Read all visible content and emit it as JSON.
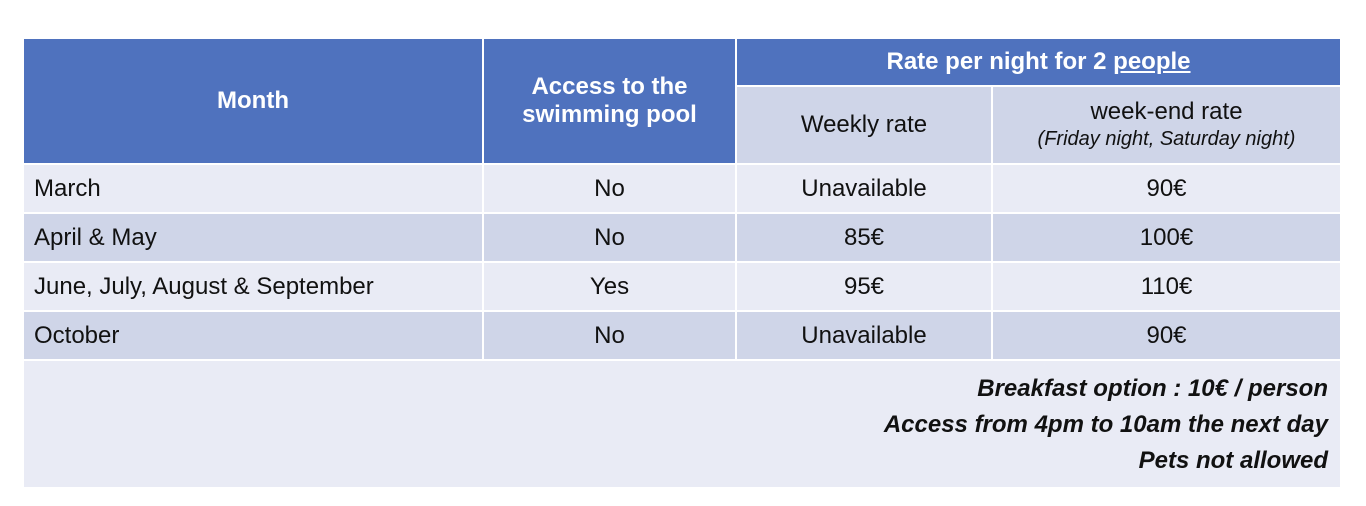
{
  "table": {
    "header": {
      "month": "Month",
      "pool": "Access to the swimming pool",
      "rate_group_prefix": "Rate per night for 2 ",
      "rate_group_underlined": "people",
      "weekly": "Weekly rate",
      "weekend": "week-end rate",
      "weekend_note": "(Friday night, Saturday night)"
    },
    "rows": [
      {
        "month": "March",
        "pool": "No",
        "weekly": "Unavailable",
        "weekend": "90€"
      },
      {
        "month": "April & May",
        "pool": "No",
        "weekly": "85€",
        "weekend": "100€"
      },
      {
        "month": "June, July, August & September",
        "pool": "Yes",
        "weekly": "95€",
        "weekend": "110€"
      },
      {
        "month": "October",
        "pool": "No",
        "weekly": "Unavailable",
        "weekend": "90€"
      }
    ],
    "notes": [
      "Breakfast option : 10€ / person",
      "Access from 4pm to 10am the next day",
      "Pets not allowed"
    ]
  },
  "colors": {
    "header_blue": "#4f72be",
    "row_light": "#e9ebf5",
    "row_dark": "#cfd5e8"
  }
}
